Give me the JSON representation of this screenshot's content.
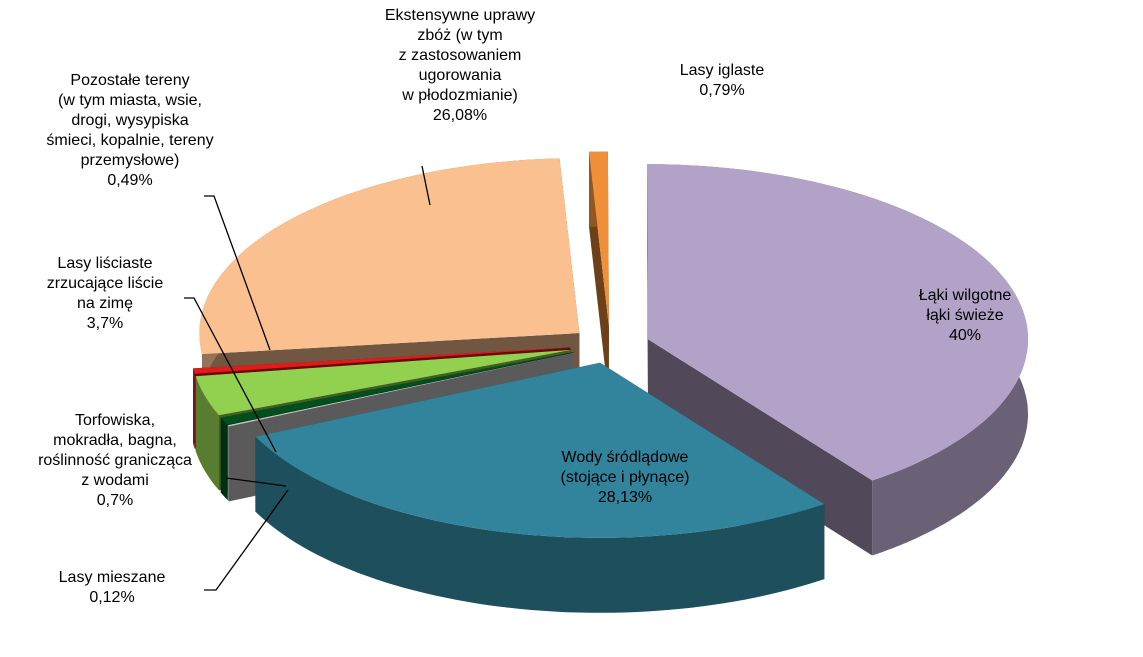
{
  "chart_data": {
    "type": "pie",
    "categories": [
      [
        "Lasy iglaste"
      ],
      [
        "Łąki wilgotne",
        "łąki świeże"
      ],
      [
        "Wody śródlądowe",
        "(stojące i płynące)"
      ],
      [
        "Lasy mieszane"
      ],
      [
        "Torfowiska,",
        "mokradła, bagna,",
        "roślinność granicząca",
        "z wodami"
      ],
      [
        "Lasy liściaste",
        "zrzucające liście",
        "na zimę"
      ],
      [
        "Pozostałe tereny",
        "(w tym miasta, wsie,",
        "drogi, wysypiska",
        "śmieci, kopalnie, tereny",
        "przemysłowe)"
      ],
      [
        "Ekstensywne uprawy",
        "zbóż (w tym",
        "z zastosowaniem",
        "ugorowania",
        "w płodozmianie)"
      ]
    ],
    "values": [
      0.79,
      40,
      28.13,
      0.12,
      0.7,
      3.7,
      0.49,
      26.08
    ],
    "value_labels": [
      "0,79%",
      "40%",
      "28,13%",
      "0,12%",
      "0,7%",
      "3,7%",
      "0,49%",
      "26,08%"
    ],
    "colors": [
      "#f0913a",
      "#b3a2c7",
      "#31849b",
      "#c8c8c8",
      "#00501e",
      "#92d050",
      "#e31a1a",
      "#fac090"
    ]
  }
}
